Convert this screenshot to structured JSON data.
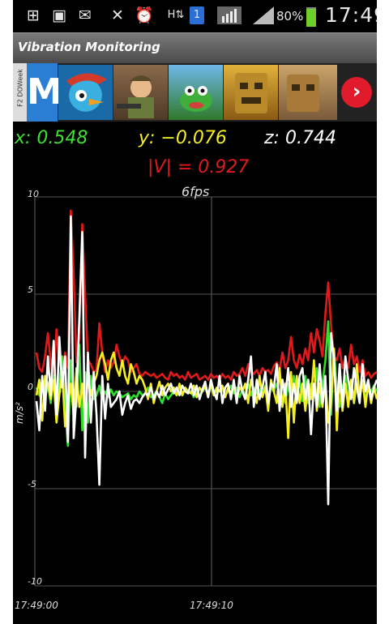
{
  "status_bar": {
    "icons": [
      "plus-icon",
      "image-icon",
      "gmail-icon",
      "mute-icon",
      "alarm-icon",
      "hspa-icon",
      "sim-1-icon",
      "signal-icon",
      "signal-icon-2"
    ],
    "battery_percent": "80%",
    "time": "17:49"
  },
  "app": {
    "title": "Vibration Monitoring"
  },
  "ad": {
    "side_text": "F2 DOWeek",
    "logo_letter": "M",
    "next_label": "›"
  },
  "readouts": {
    "x": "x: 0.548",
    "y": "y: −0.076",
    "z": "z: 0.744",
    "magnitude": "|V| = 0.927",
    "fps": "6fps"
  },
  "chart_data": {
    "type": "line",
    "ylim": [
      -10,
      10
    ],
    "yticks": [
      "10",
      "5",
      "0",
      "-5",
      "-10"
    ],
    "xticks": [
      "17:49:00",
      "17:49:10"
    ],
    "ylabel": "m/s²",
    "grid": true,
    "colors": {
      "x": "#2ee02a",
      "y": "#f5ee21",
      "z": "#ffffff",
      "magnitude": "#e01a1a"
    },
    "series": [
      {
        "key": "magnitude",
        "values": [
          2.0,
          1.2,
          1.0,
          1.8,
          3.0,
          1.5,
          0.5,
          3.2,
          1.5,
          1.0,
          2.0,
          1.2,
          9.3,
          6.0,
          1.5,
          2.8,
          8.6,
          5.0,
          1.6,
          1.4,
          1.0,
          1.1,
          3.5,
          2.0,
          1.0,
          1.6,
          1.2,
          1.5,
          2.4,
          1.8,
          1.4,
          1.8,
          1.6,
          1.0,
          1.2,
          1.4,
          0.9,
          0.8,
          1.0,
          0.9,
          0.8,
          0.9,
          0.7,
          0.8,
          0.9,
          0.7,
          0.6,
          1.0,
          0.8,
          0.9,
          0.7,
          0.8,
          0.6,
          1.0,
          0.7,
          0.8,
          0.9,
          0.6,
          0.7,
          0.8,
          0.6,
          0.9,
          0.7,
          0.8,
          0.6,
          0.9,
          0.7,
          0.8,
          0.6,
          1.0,
          0.8,
          0.9,
          1.2,
          0.8,
          1.4,
          1.0,
          0.9,
          1.1,
          0.8,
          1.2,
          1.0,
          1.1,
          0.9,
          1.3,
          1.5,
          1.1,
          2.0,
          1.2,
          1.6,
          2.8,
          1.6,
          1.2,
          1.9,
          1.4,
          2.2,
          1.6,
          3.0,
          2.0,
          3.2,
          2.6,
          1.8,
          4.0,
          5.6,
          3.4,
          1.8,
          1.6,
          2.2,
          1.2,
          1.6,
          1.2,
          2.4,
          1.4,
          1.8,
          1.0,
          1.6,
          0.8,
          1.0,
          0.7,
          0.9,
          1.0
        ]
      },
      {
        "key": "x",
        "values": [
          0.2,
          -0.2,
          0.6,
          -0.4,
          0.4,
          -0.6,
          0.8,
          -1.5,
          0.4,
          1.8,
          -0.8,
          -2.8,
          1.6,
          -0.3,
          -0.8,
          2.4,
          -2.0,
          1.0,
          -1.6,
          0.8,
          -0.4,
          -0.2,
          0.3,
          -0.4,
          0.0,
          -0.3,
          0.1,
          -0.2,
          0.0,
          -0.1,
          -0.3,
          -0.2,
          -0.1,
          -0.4,
          -0.2,
          -0.3,
          0.0,
          -0.2,
          -0.1,
          0.2,
          -0.3,
          -0.2,
          0.0,
          -0.3,
          -0.6,
          -0.1,
          -0.4,
          -0.2,
          0.0,
          -0.2,
          0.1,
          -0.2,
          0.2,
          -0.1,
          0.0,
          -0.3,
          0.1,
          -0.2,
          0.0,
          0.2,
          -0.1,
          0.3,
          -0.2,
          0.1,
          0.0,
          0.2,
          -0.2,
          0.0,
          0.3,
          -0.1,
          0.2,
          -0.3,
          0.1,
          -0.2,
          0.4,
          -0.2,
          0.2,
          -0.1,
          0.1,
          -0.2,
          0.3,
          -0.3,
          0.2,
          0.0,
          0.4,
          -0.2,
          0.6,
          -0.6,
          0.4,
          -0.4,
          0.8,
          -0.2,
          0.6,
          -0.5,
          0.8,
          -0.6,
          0.4,
          -0.2,
          1.2,
          -0.8,
          0.4,
          1.6,
          3.6,
          -1.2,
          2.2,
          0.0,
          -0.8,
          0.2,
          0.8,
          -0.4,
          0.6,
          -0.6,
          0.4,
          -0.2,
          0.6,
          -0.4,
          0.2,
          0.0,
          0.3,
          0.0
        ]
      },
      {
        "key": "y",
        "values": [
          -0.2,
          0.6,
          -1.5,
          0.8,
          0.4,
          -0.4,
          0.6,
          -1.6,
          -0.2,
          1.0,
          -1.8,
          -0.6,
          0.4,
          -1.2,
          1.2,
          -0.8,
          0.4,
          -1.4,
          0.8,
          -0.2,
          0.4,
          0.8,
          1.6,
          2.0,
          1.4,
          0.6,
          1.6,
          2.0,
          1.2,
          0.8,
          1.6,
          0.8,
          0.4,
          1.4,
          1.0,
          0.4,
          0.8,
          0.6,
          0.2,
          -0.4,
          0.4,
          -0.6,
          0.0,
          0.5,
          -0.2,
          0.2,
          0.4,
          0.0,
          0.2,
          -0.2,
          0.4,
          -0.2,
          0.2,
          0.0,
          -0.1,
          0.3,
          -0.3,
          0.2,
          0.0,
          0.3,
          -0.3,
          0.4,
          -0.2,
          0.2,
          0.0,
          0.3,
          -0.3,
          0.2,
          -0.1,
          0.3,
          -0.4,
          0.2,
          0.0,
          0.4,
          -0.6,
          0.6,
          0.0,
          -0.6,
          0.8,
          -0.3,
          0.2,
          -1.0,
          0.6,
          0.0,
          -0.6,
          1.2,
          -0.8,
          0.4,
          -2.4,
          1.0,
          -1.6,
          0.8,
          -0.6,
          0.4,
          -1.0,
          0.6,
          -0.4,
          1.6,
          -1.0,
          0.4,
          -0.8,
          0.6,
          -1.6,
          -0.6,
          2.2,
          -2.0,
          0.8,
          -1.0,
          0.4,
          -0.8,
          0.6,
          -0.6,
          1.4,
          -0.4,
          0.6,
          -0.8,
          0.4,
          -0.6,
          0.2,
          -0.4
        ]
      },
      {
        "key": "z",
        "values": [
          -0.5,
          -2.0,
          0.8,
          -1.0,
          1.8,
          -0.2,
          2.6,
          -1.2,
          2.8,
          0.2,
          1.8,
          -2.6,
          9.0,
          -2.4,
          -0.2,
          3.8,
          8.2,
          -3.4,
          2.0,
          -1.6,
          1.0,
          -1.2,
          -4.8,
          0.8,
          -1.4,
          0.4,
          -0.8,
          -0.6,
          -0.4,
          0.0,
          -1.2,
          -0.6,
          -0.2,
          -0.9,
          -0.5,
          -0.4,
          -0.6,
          -0.3,
          -0.1,
          -0.2,
          0.2,
          -0.4,
          0.0,
          -0.3,
          0.3,
          -0.2,
          0.1,
          0.4,
          -0.1,
          0.2,
          -0.2,
          0.3,
          0.0,
          -0.1,
          0.4,
          -0.2,
          0.3,
          -0.4,
          0.1,
          0.5,
          -0.3,
          0.6,
          0.0,
          -0.4,
          0.8,
          -0.6,
          0.2,
          0.4,
          -0.4,
          0.6,
          -0.6,
          0.8,
          0.0,
          -0.4,
          0.6,
          1.8,
          -0.8,
          0.6,
          -0.4,
          0.2,
          1.0,
          -0.6,
          0.4,
          0.2,
          1.4,
          -1.0,
          0.6,
          -0.2,
          1.2,
          -0.8,
          0.4,
          -0.6,
          0.8,
          1.2,
          -0.4,
          0.6,
          -2.2,
          0.4,
          -0.8,
          1.4,
          -0.6,
          0.8,
          -5.8,
          3.0,
          1.6,
          -1.0,
          1.4,
          -0.8,
          1.8,
          0.6,
          -0.4,
          1.2,
          0.2,
          -0.6,
          1.4,
          0.0,
          0.6,
          -0.4,
          0.2,
          0.6
        ]
      }
    ]
  }
}
